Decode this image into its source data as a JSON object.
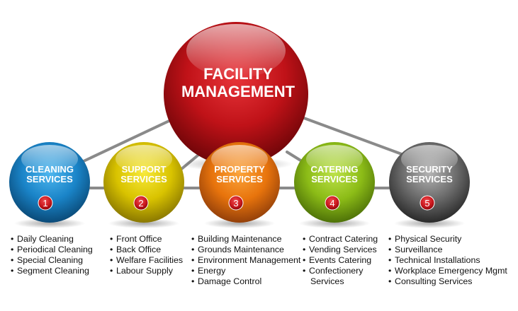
{
  "center": {
    "title_line1": "FACILITY",
    "title_line2": "MANAGEMENT",
    "color": "#c8161c"
  },
  "services": [
    {
      "line1": "CLEANING",
      "line2": "SERVICES",
      "number": "1",
      "color": "#1a84c8",
      "items": [
        "Daily Cleaning",
        "Periodical Cleaning",
        "Special Cleaning",
        "Segment Cleaning"
      ]
    },
    {
      "line1": "SUPPORT",
      "line2": "SERVICES",
      "number": "2",
      "color": "#d9c300",
      "items": [
        "Front Office",
        "Back Office",
        "Welfare Facilities",
        "Labour Supply"
      ]
    },
    {
      "line1": "PROPERTY",
      "line2": "SERVICES",
      "number": "3",
      "color": "#e8740c",
      "items": [
        "Building Maintenance",
        "Grounds Maintenance",
        "Environment Management",
        "Energy",
        "Damage Control"
      ]
    },
    {
      "line1": "CATERING",
      "line2": "SERVICES",
      "number": "4",
      "color": "#8cbc17",
      "items": [
        "Contract Catering",
        "Vending Services",
        "Events Catering",
        "Confectionery",
        "Services"
      ]
    },
    {
      "line1": "SECURITY",
      "line2": "SERVICES",
      "number": "5",
      "color": "#6b6b6b",
      "items": [
        "Physical Security",
        "Surveillance",
        "Technical Installations",
        "Workplace Emergency Mgmt",
        "Consulting Services"
      ]
    }
  ],
  "badge_color": "#c8161c"
}
